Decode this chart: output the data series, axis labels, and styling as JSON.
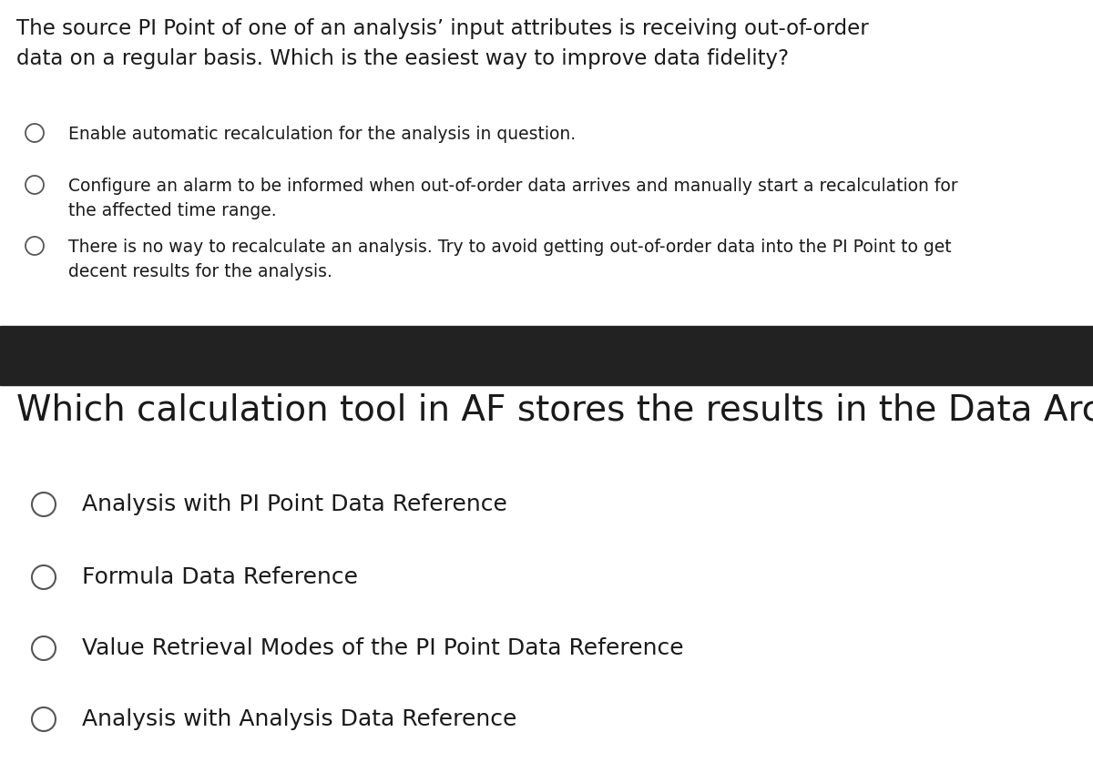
{
  "bg_color": "#ffffff",
  "black_bar_color": "#222222",
  "q1_text_line1": "The source PI Point of one of an analysis’ input attributes is receiving out-of-order",
  "q1_text_line2": "data on a regular basis. Which is the easiest way to improve data fidelity?",
  "q1_fontsize": 16.5,
  "q1_options": [
    "Enable automatic recalculation for the analysis in question.",
    "Configure an alarm to be informed when out-of-order data arrives and manually start a recalculation for\nthe affected time range.",
    "There is no way to recalculate an analysis. Try to avoid getting out-of-order data into the PI Point to get\ndecent results for the analysis."
  ],
  "q1_option_fontsize": 13.5,
  "q2_text": "Which calculation tool in AF stores the results in the Data Archive?",
  "q2_fontsize": 28,
  "q2_options": [
    "Analysis with PI Point Data Reference",
    "Formula Data Reference",
    "Value Retrieval Modes of the PI Point Data Reference",
    "Analysis with Analysis Data Reference"
  ],
  "q2_option_fontsize": 18.0,
  "text_color": "#1a1a1a",
  "circle_color": "#555555"
}
